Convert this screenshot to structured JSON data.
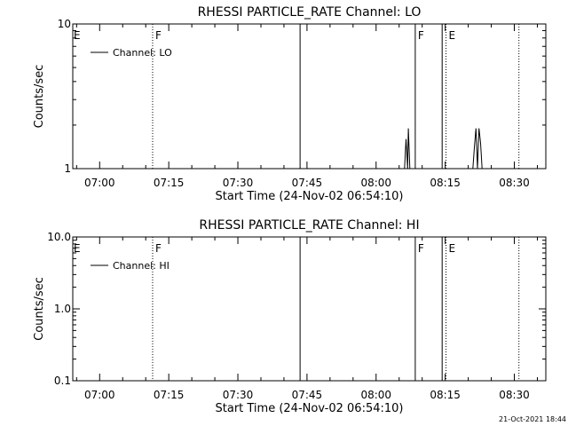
{
  "chart_data": [
    {
      "type": "line",
      "title": "RHESSI PARTICLE_RATE Channel: LO",
      "xlabel": "Start Time (24-Nov-02 06:54:10)",
      "ylabel": "Counts/sec",
      "y_scale": "log",
      "ylim": [
        1,
        10
      ],
      "y_ticks": [
        1,
        10
      ],
      "y_tick_labels": [
        "1",
        "10"
      ],
      "xlim": [
        "06:54:10",
        "08:36:50"
      ],
      "x_ticks": [
        "07:00",
        "07:15",
        "07:30",
        "07:45",
        "08:00",
        "08:15",
        "08:30"
      ],
      "grid": false,
      "legend_position": "top-left",
      "series": [
        {
          "name": "Channel: LO",
          "points": [
            [
              "08:06:10",
              1
            ],
            [
              "08:06:30",
              1.6
            ],
            [
              "08:06:50",
              1
            ],
            [
              "08:07:00",
              1.9
            ],
            [
              "08:07:20",
              1
            ],
            [
              "08:21:00",
              1
            ],
            [
              "08:21:20",
              1.4
            ],
            [
              "08:21:40",
              1.9
            ],
            [
              "08:22:00",
              1
            ],
            [
              "08:22:20",
              1.9
            ],
            [
              "08:22:40",
              1.5
            ],
            [
              "08:23:00",
              1
            ]
          ]
        }
      ],
      "vertical_lines": [
        {
          "time": "07:11:30",
          "style": "dotted",
          "label": "F"
        },
        {
          "time": "07:43:30",
          "style": "solid",
          "label": ""
        },
        {
          "time": "08:08:30",
          "style": "solid",
          "label": "F"
        },
        {
          "time": "08:14:20",
          "style": "solid",
          "label": ""
        },
        {
          "time": "08:15:10",
          "style": "dotted",
          "label": "E"
        },
        {
          "time": "08:31:00",
          "style": "dotted",
          "label": ""
        }
      ],
      "edge_label": "E"
    },
    {
      "type": "line",
      "title": "RHESSI PARTICLE_RATE Channel: HI",
      "xlabel": "Start Time (24-Nov-02 06:54:10)",
      "ylabel": "Counts/sec",
      "y_scale": "log",
      "ylim": [
        0.1,
        10
      ],
      "y_ticks": [
        0.1,
        1,
        10
      ],
      "y_tick_labels": [
        "0.1",
        "1.0",
        "10.0"
      ],
      "xlim": [
        "06:54:10",
        "08:36:50"
      ],
      "x_ticks": [
        "07:00",
        "07:15",
        "07:30",
        "07:45",
        "08:00",
        "08:15",
        "08:30"
      ],
      "grid": false,
      "legend_position": "top-left",
      "series": [
        {
          "name": "Channel: HI",
          "points": []
        }
      ],
      "vertical_lines": [
        {
          "time": "07:11:30",
          "style": "dotted",
          "label": "F"
        },
        {
          "time": "07:43:30",
          "style": "solid",
          "label": ""
        },
        {
          "time": "08:08:30",
          "style": "solid",
          "label": "F"
        },
        {
          "time": "08:14:20",
          "style": "solid",
          "label": ""
        },
        {
          "time": "08:15:10",
          "style": "dotted",
          "label": "E"
        },
        {
          "time": "08:31:00",
          "style": "dotted",
          "label": ""
        }
      ],
      "edge_label": "E"
    }
  ],
  "footer": {
    "timestamp": "21-Oct-2021 18:44"
  }
}
